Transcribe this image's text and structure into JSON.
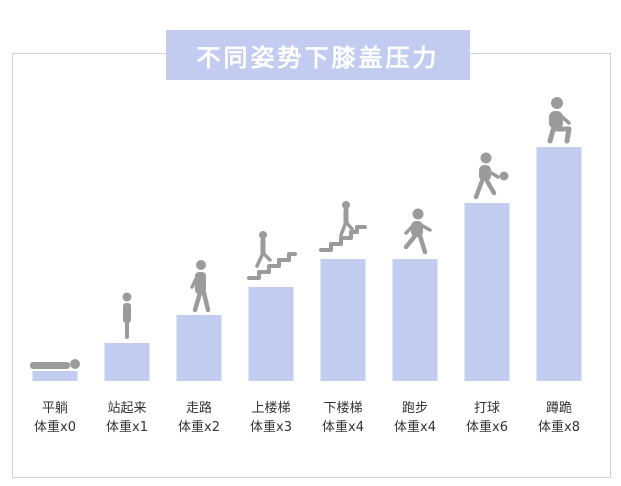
{
  "colors": {
    "bar": "#c2ccf0",
    "figure": "#9b9b9b",
    "frame": "#c9d3e6",
    "text": "#333333"
  },
  "chart_data": {
    "type": "bar",
    "title": "不同姿势下膝盖压力",
    "categories": [
      "平躺",
      "站起来",
      "走路",
      "上楼梯",
      "下楼梯",
      "跑步",
      "打球",
      "蹲跪"
    ],
    "labels": [
      "体重x0",
      "体重x1",
      "体重x2",
      "体重x3",
      "体重x4",
      "体重x4",
      "体重x6",
      "体重x8"
    ],
    "values": [
      0,
      1,
      2,
      3,
      4,
      4,
      6,
      8
    ],
    "icons": [
      "lying-person-icon",
      "standing-person-icon",
      "walking-person-icon",
      "stairs-up-person-icon",
      "stairs-down-person-icon",
      "running-person-icon",
      "ball-player-icon",
      "squatting-person-icon"
    ],
    "grid": false,
    "legend": "none"
  }
}
